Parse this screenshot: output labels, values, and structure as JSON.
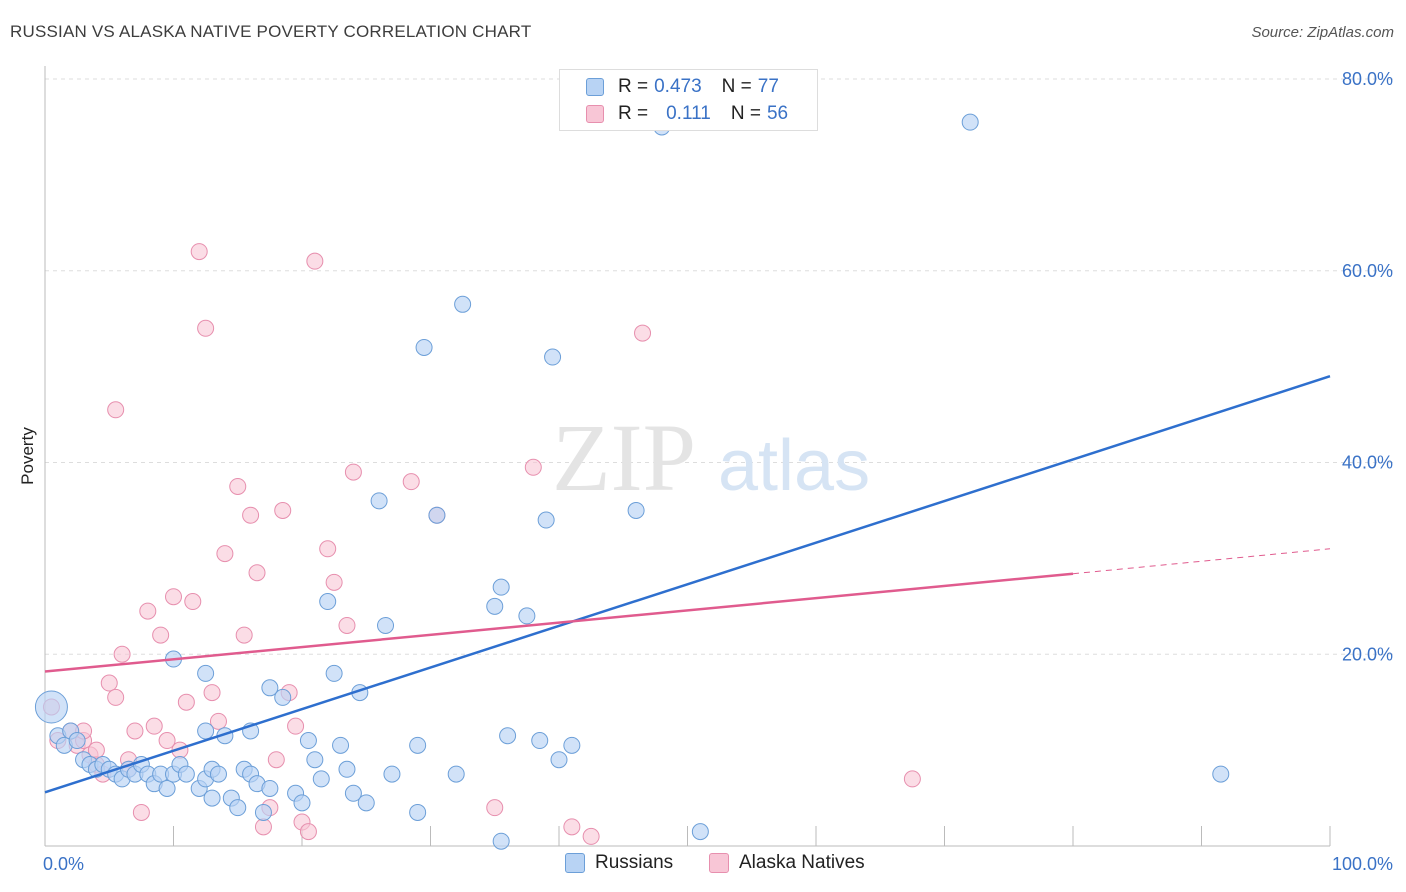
{
  "header": {
    "title": "RUSSIAN VS ALASKA NATIVE POVERTY CORRELATION CHART",
    "source": "Source: ZipAtlas.com"
  },
  "legend": {
    "rows": [
      {
        "r_label": "R =",
        "r_value": "0.473",
        "n_label": "N =",
        "n_value": "77"
      },
      {
        "r_label": "R =",
        "r_value": "0.111",
        "n_label": "N =",
        "n_value": "56"
      }
    ],
    "series_labels": [
      "Russians",
      "Alaska Natives"
    ]
  },
  "watermark": {
    "zip": "ZIP",
    "atlas": "atlas"
  },
  "colors": {
    "russians_fill": "#b8d3f4",
    "russians_stroke": "#6c9fd8",
    "russians_line": "#2e6fce",
    "alaska_fill": "#f8c6d6",
    "alaska_stroke": "#e78fae",
    "alaska_line": "#e05b8e",
    "tick_label": "#3a72c6",
    "grid": "#dddddd"
  },
  "chart_data": {
    "type": "scatter",
    "title": "RUSSIAN VS ALASKA NATIVE POVERTY CORRELATION CHART",
    "xlabel": "",
    "ylabel": "Poverty",
    "xlim": [
      0,
      100
    ],
    "ylim": [
      0,
      80
    ],
    "x_tick_labels": [
      "0.0%",
      "100.0%"
    ],
    "y_ticks": [
      20,
      40,
      60,
      80
    ],
    "y_tick_labels": [
      "20.0%",
      "40.0%",
      "60.0%",
      "80.0%"
    ],
    "grid": true,
    "legend_position": "top-center",
    "series": [
      {
        "name": "Russians",
        "r": 0.473,
        "n": 77,
        "trend": {
          "x": [
            0,
            100
          ],
          "y": [
            5.6,
            49.0
          ]
        },
        "points": [
          [
            0.5,
            14.5
          ],
          [
            1.0,
            11.5
          ],
          [
            1.5,
            10.5
          ],
          [
            2.0,
            12.0
          ],
          [
            2.5,
            11.0
          ],
          [
            3.0,
            9.0
          ],
          [
            3.5,
            8.5
          ],
          [
            4.0,
            8.0
          ],
          [
            4.5,
            8.5
          ],
          [
            5.0,
            8.0
          ],
          [
            5.5,
            7.5
          ],
          [
            6.0,
            7.0
          ],
          [
            6.5,
            8.0
          ],
          [
            7.0,
            7.5
          ],
          [
            7.5,
            8.5
          ],
          [
            8.0,
            7.5
          ],
          [
            8.5,
            6.5
          ],
          [
            9.0,
            7.5
          ],
          [
            9.5,
            6.0
          ],
          [
            10.0,
            7.5
          ],
          [
            10.5,
            8.5
          ],
          [
            11.0,
            7.5
          ],
          [
            12.0,
            6.0
          ],
          [
            12.5,
            7.0
          ],
          [
            13.0,
            8.0
          ],
          [
            13.5,
            7.5
          ],
          [
            10.0,
            19.5
          ],
          [
            12.5,
            18.0
          ],
          [
            12.5,
            12.0
          ],
          [
            13.0,
            5.0
          ],
          [
            14.0,
            11.5
          ],
          [
            14.5,
            5.0
          ],
          [
            15.0,
            4.0
          ],
          [
            15.5,
            8.0
          ],
          [
            16.0,
            7.5
          ],
          [
            16.0,
            12.0
          ],
          [
            16.5,
            6.5
          ],
          [
            17.0,
            3.5
          ],
          [
            17.5,
            6.0
          ],
          [
            17.5,
            16.5
          ],
          [
            18.5,
            15.5
          ],
          [
            19.5,
            5.5
          ],
          [
            20.0,
            4.5
          ],
          [
            20.5,
            11.0
          ],
          [
            21.0,
            9.0
          ],
          [
            21.5,
            7.0
          ],
          [
            22.0,
            25.5
          ],
          [
            22.5,
            18.0
          ],
          [
            23.0,
            10.5
          ],
          [
            23.5,
            8.0
          ],
          [
            24.0,
            5.5
          ],
          [
            24.5,
            16.0
          ],
          [
            25.0,
            4.5
          ],
          [
            26.0,
            36.0
          ],
          [
            26.5,
            23.0
          ],
          [
            27.0,
            7.5
          ],
          [
            29.0,
            10.5
          ],
          [
            29.0,
            3.5
          ],
          [
            29.5,
            52.0
          ],
          [
            30.5,
            34.5
          ],
          [
            32.0,
            7.5
          ],
          [
            32.5,
            56.5
          ],
          [
            35.5,
            0.5
          ],
          [
            35.0,
            25.0
          ],
          [
            35.5,
            27.0
          ],
          [
            36.0,
            11.5
          ],
          [
            37.5,
            24.0
          ],
          [
            38.5,
            11.0
          ],
          [
            39.0,
            34.0
          ],
          [
            39.5,
            51.0
          ],
          [
            40.0,
            9.0
          ],
          [
            41.0,
            10.5
          ],
          [
            46.0,
            35.0
          ],
          [
            48.0,
            75.0
          ],
          [
            51.0,
            1.5
          ],
          [
            72.0,
            75.5
          ],
          [
            91.5,
            7.5
          ]
        ]
      },
      {
        "name": "Alaska Natives",
        "r": 0.111,
        "n": 56,
        "trend": {
          "x": [
            0,
            80
          ],
          "y": [
            18.2,
            28.4
          ]
        },
        "trend_extension": {
          "x": [
            80,
            100
          ],
          "y": [
            28.4,
            31.0
          ]
        },
        "points": [
          [
            0.5,
            14.5
          ],
          [
            1.0,
            11.0
          ],
          [
            2.0,
            12.0
          ],
          [
            2.5,
            10.5
          ],
          [
            3.0,
            11.0
          ],
          [
            3.5,
            9.5
          ],
          [
            4.0,
            8.5
          ],
          [
            4.5,
            7.5
          ],
          [
            5.0,
            17.0
          ],
          [
            5.5,
            15.5
          ],
          [
            6.0,
            20.0
          ],
          [
            6.5,
            9.0
          ],
          [
            7.0,
            12.0
          ],
          [
            7.5,
            3.5
          ],
          [
            8.0,
            24.5
          ],
          [
            8.5,
            12.5
          ],
          [
            9.0,
            22.0
          ],
          [
            9.5,
            11.0
          ],
          [
            10.0,
            26.0
          ],
          [
            10.5,
            10.0
          ],
          [
            11.0,
            15.0
          ],
          [
            11.5,
            25.5
          ],
          [
            12.0,
            62.0
          ],
          [
            12.5,
            54.0
          ],
          [
            13.0,
            16.0
          ],
          [
            13.5,
            13.0
          ],
          [
            14.0,
            30.5
          ],
          [
            15.0,
            37.5
          ],
          [
            15.5,
            22.0
          ],
          [
            16.0,
            34.5
          ],
          [
            16.5,
            28.5
          ],
          [
            17.0,
            2.0
          ],
          [
            17.5,
            4.0
          ],
          [
            18.0,
            9.0
          ],
          [
            18.5,
            35.0
          ],
          [
            19.0,
            16.0
          ],
          [
            19.5,
            12.5
          ],
          [
            20.0,
            2.5
          ],
          [
            20.5,
            1.5
          ],
          [
            21.0,
            61.0
          ],
          [
            22.0,
            31.0
          ],
          [
            22.5,
            27.5
          ],
          [
            23.5,
            23.0
          ],
          [
            24.0,
            39.0
          ],
          [
            5.5,
            45.5
          ],
          [
            28.5,
            38.0
          ],
          [
            30.5,
            34.5
          ],
          [
            35.0,
            4.0
          ],
          [
            38.0,
            39.5
          ],
          [
            41.0,
            2.0
          ],
          [
            42.5,
            1.0
          ],
          [
            46.5,
            53.5
          ],
          [
            67.5,
            7.0
          ],
          [
            3.0,
            12.0
          ],
          [
            4.0,
            10.0
          ],
          [
            6.5,
            8.0
          ]
        ]
      }
    ]
  }
}
